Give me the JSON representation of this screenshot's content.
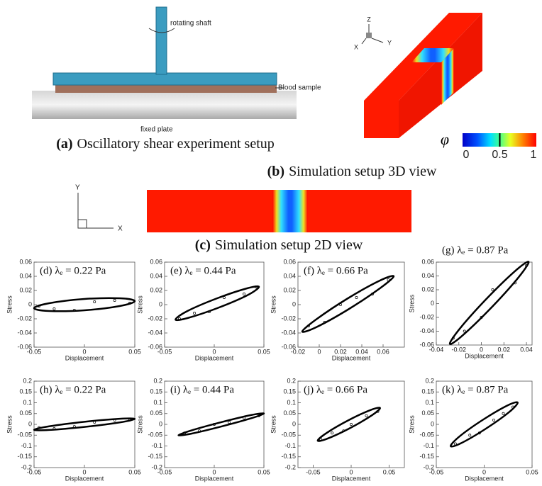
{
  "figure": {
    "panels": [
      {
        "letter": "(a)",
        "caption": "Oscillatory shear experiment setup",
        "labels": [
          "rotating shaft",
          "Blood sample",
          "fixed plate"
        ]
      },
      {
        "letter": "(b)",
        "caption": "Simulation setup 3D view",
        "axes": [
          "Z",
          "Y",
          "X"
        ],
        "colorbar": {
          "label": "φ",
          "lim": [
            0,
            1
          ],
          "ticks": [
            0,
            0.5,
            1
          ]
        }
      },
      {
        "letter": "(c)",
        "caption": "Simulation setup 2D view",
        "axes": [
          "Y",
          "X"
        ]
      }
    ]
  },
  "chart_data": [
    {
      "type": "scatter",
      "title": "(d) λₑ = 0.22 Pa",
      "x_label": "Displacement",
      "y_label": "Stress",
      "color": "#000000",
      "xlim": [
        -0.05,
        0.05
      ],
      "xticks": [
        -0.05,
        0,
        0.05
      ],
      "ylim": [
        -0.06,
        0.06
      ],
      "yticks": [
        -0.06,
        -0.04,
        -0.02,
        0,
        0.02,
        0.04,
        0.06
      ],
      "fit": {
        "x": [
          0.05,
          0.035,
          0,
          -0.035,
          -0.05,
          -0.035,
          0,
          0.035
        ],
        "y": [
          0.005,
          0.009,
          0.008,
          0.002,
          -0.005,
          -0.009,
          -0.008,
          -0.002
        ]
      },
      "points": {
        "x": [
          -0.045,
          -0.03,
          -0.01,
          0.01,
          0.03,
          0.045
        ],
        "y": [
          -0.002,
          -0.006,
          -0.008,
          0.004,
          0.006,
          0.002
        ]
      }
    },
    {
      "type": "scatter",
      "title": "(e) λₑ = 0.44 Pa",
      "x_label": "Displacement",
      "y_label": "Stress",
      "color": "#000000",
      "xlim": [
        -0.05,
        0.05
      ],
      "xticks": [
        -0.05,
        0,
        0.05
      ],
      "ylim": [
        -0.06,
        0.06
      ],
      "yticks": [
        -0.06,
        -0.04,
        -0.02,
        0,
        0.02,
        0.04,
        0.06
      ],
      "fit": {
        "x": [
          0.045,
          0.033,
          0.003,
          -0.027,
          -0.039,
          -0.027,
          0.003,
          0.033
        ],
        "y": [
          0.025,
          0.023,
          0.009,
          -0.009,
          -0.021,
          -0.019,
          -0.005,
          0.013
        ]
      },
      "points": {
        "x": [
          -0.035,
          -0.02,
          -0.005,
          0.01,
          0.03,
          0.042
        ],
        "y": [
          -0.02,
          -0.012,
          -0.01,
          0.01,
          0.015,
          0.025
        ]
      }
    },
    {
      "type": "scatter",
      "title": "(f) λₑ = 0.66 Pa",
      "x_label": "Displacement",
      "y_label": "Stress",
      "color": "#000000",
      "xlim": [
        -0.02,
        0.08
      ],
      "xticks": [
        -0.02,
        0,
        0.02,
        0.04,
        0.06
      ],
      "ylim": [
        -0.06,
        0.06
      ],
      "yticks": [
        -0.06,
        -0.04,
        -0.02,
        0,
        0.02,
        0.04,
        0.06
      ],
      "fit": {
        "x": [
          0.07,
          0.057,
          0.027,
          -0.003,
          -0.016,
          -0.003,
          0.027,
          0.057
        ],
        "y": [
          0.04,
          0.034,
          0.009,
          -0.021,
          -0.038,
          -0.032,
          -0.007,
          0.023
        ]
      },
      "points": {
        "x": [
          -0.01,
          0.005,
          0.02,
          0.035,
          0.05,
          0.065
        ],
        "y": [
          -0.03,
          -0.025,
          0,
          0.01,
          0.015,
          0.035
        ]
      }
    },
    {
      "type": "scatter",
      "title": "(g) λₑ = 0.87 Pa",
      "x_label": "Displacement",
      "y_label": "Stress",
      "color": "#000000",
      "xlim": [
        -0.04,
        0.045
      ],
      "xticks": [
        -0.04,
        -0.02,
        0,
        0.02,
        0.04
      ],
      "ylim": [
        -0.06,
        0.06
      ],
      "yticks": [
        -0.06,
        -0.04,
        -0.02,
        0,
        0.02,
        0.04,
        0.06
      ],
      "fit": {
        "x": [
          0.042,
          0.032,
          0.007,
          -0.018,
          -0.028,
          -0.018,
          0.007,
          0.032
        ],
        "y": [
          0.06,
          0.05,
          0.011,
          -0.034,
          -0.058,
          -0.048,
          -0.009,
          0.036
        ]
      },
      "points": {
        "x": [
          -0.025,
          -0.015,
          0,
          0.01,
          0.03,
          0.04
        ],
        "y": [
          -0.05,
          -0.04,
          -0.02,
          0.02,
          0.03,
          0.055
        ]
      }
    },
    {
      "type": "scatter",
      "title": "(h) λₑ = 0.22 Pa",
      "x_label": "Displacement",
      "y_label": "Stress",
      "color": "#000000",
      "xlim": [
        -0.05,
        0.05
      ],
      "xticks": [
        -0.05,
        0,
        0.05
      ],
      "ylim": [
        -0.2,
        0.2
      ],
      "yticks": [
        -0.2,
        -0.15,
        -0.1,
        -0.05,
        0,
        0.05,
        0.1,
        0.15,
        0.2
      ],
      "fit": {
        "x": [
          0.05,
          0.035,
          0,
          -0.035,
          -0.05,
          -0.035,
          0,
          0.035
        ],
        "y": [
          0.025,
          0.026,
          0.012,
          -0.009,
          -0.025,
          -0.026,
          -0.012,
          0.009
        ]
      },
      "points": {
        "x": [
          -0.045,
          -0.03,
          -0.01,
          0.01,
          0.03,
          0.045
        ],
        "y": [
          -0.015,
          -0.02,
          -0.01,
          0.01,
          0.02,
          0.02
        ]
      }
    },
    {
      "type": "scatter",
      "title": "(i) λₑ = 0.44 Pa",
      "x_label": "Displacement",
      "y_label": "Stress",
      "color": "#000000",
      "xlim": [
        -0.05,
        0.05
      ],
      "xticks": [
        -0.05,
        0,
        0.05
      ],
      "ylim": [
        -0.2,
        0.2
      ],
      "yticks": [
        -0.2,
        -0.15,
        -0.1,
        -0.05,
        0,
        0.05,
        0.1,
        0.15,
        0.2
      ],
      "fit": {
        "x": [
          0.05,
          0.037,
          0.007,
          -0.023,
          -0.036,
          -0.023,
          0.007,
          0.037
        ],
        "y": [
          0.05,
          0.043,
          0.01,
          -0.028,
          -0.05,
          -0.043,
          -0.01,
          0.028
        ]
      },
      "points": {
        "x": [
          -0.03,
          -0.015,
          0,
          0.015,
          0.03,
          0.045
        ],
        "y": [
          -0.04,
          -0.03,
          0,
          0.01,
          0.03,
          0.04
        ]
      }
    },
    {
      "type": "scatter",
      "title": "(j) λₑ = 0.66 Pa",
      "x_label": "Displacement",
      "y_label": "Stress",
      "color": "#000000",
      "xlim": [
        -0.07,
        0.07
      ],
      "xticks": [
        -0.05,
        0,
        0.05
      ],
      "ylim": [
        -0.2,
        0.2
      ],
      "yticks": [
        -0.2,
        -0.15,
        -0.1,
        -0.05,
        0,
        0.05,
        0.1,
        0.15,
        0.2
      ],
      "fit": {
        "x": [
          0.038,
          0.026,
          -0.003,
          -0.032,
          -0.044,
          -0.032,
          -0.003,
          0.026
        ],
        "y": [
          0.075,
          0.067,
          0.02,
          -0.039,
          -0.075,
          -0.067,
          -0.02,
          0.039
        ]
      },
      "points": {
        "x": [
          -0.04,
          -0.025,
          -0.01,
          0,
          0.02,
          0.035
        ],
        "y": [
          -0.07,
          -0.04,
          -0.03,
          0,
          0.04,
          0.06
        ]
      }
    },
    {
      "type": "scatter",
      "title": "(k) λₑ = 0.87 Pa",
      "x_label": "Displacement",
      "y_label": "Stress",
      "color": "#000000",
      "xlim": [
        -0.05,
        0.05
      ],
      "xticks": [
        -0.05,
        0,
        0.05
      ],
      "ylim": [
        -0.2,
        0.2
      ],
      "yticks": [
        -0.2,
        -0.15,
        -0.1,
        -0.05,
        0,
        0.05,
        0.1,
        0.15,
        0.2
      ],
      "fit": {
        "x": [
          0.035,
          0.025,
          0,
          -0.025,
          -0.035,
          -0.025,
          0,
          0.025
        ],
        "y": [
          0.1,
          0.089,
          0.025,
          -0.053,
          -0.1,
          -0.089,
          -0.025,
          0.053
        ]
      },
      "points": {
        "x": [
          -0.03,
          -0.015,
          -0.005,
          0.01,
          0.02,
          0.03
        ],
        "y": [
          -0.09,
          -0.05,
          -0.04,
          0.02,
          0.05,
          0.08
        ]
      }
    }
  ]
}
